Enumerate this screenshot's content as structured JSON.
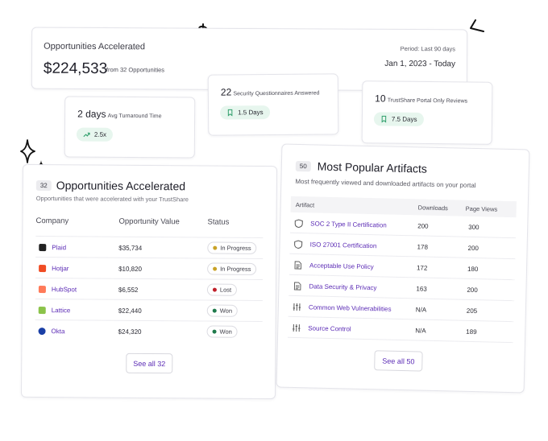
{
  "summary": {
    "title": "Opportunities Accelerated",
    "amount": "$224,533",
    "sub": "from 32 Opportunities",
    "period": "Period: Last 90 days",
    "range": "Jan 1, 2023 - Today"
  },
  "stats": {
    "turnaround": {
      "value": "2 days",
      "label": "Avg Turnaround Time",
      "pill": "2.5x",
      "icon": "trend-up-icon"
    },
    "security": {
      "value": "22",
      "label": "Security Questionnaires Answered",
      "pill": "1.5 Days",
      "icon": "bookmark-icon"
    },
    "reviews": {
      "value": "10",
      "label": "TrustShare Portal Only Reviews",
      "pill": "7.5 Days",
      "icon": "bookmark-icon"
    }
  },
  "opportunities": {
    "count": "32",
    "title": "Opportunities Accelerated",
    "subtitle": "Opportunities that were accelerated with your TrustShare",
    "columns": [
      "Company",
      "Opportunity Value",
      "Status"
    ],
    "rows": [
      {
        "company": "Plaid",
        "value": "$35,734",
        "status": "In Progress",
        "dot": "#c9a227",
        "logo": "#222222"
      },
      {
        "company": "Hotjar",
        "value": "$10,820",
        "status": "In Progress",
        "dot": "#c9a227",
        "logo": "#f04c24"
      },
      {
        "company": "HubSpot",
        "value": "$6,552",
        "status": "Lost",
        "dot": "#c0202a",
        "logo": "#ff7a59"
      },
      {
        "company": "Lattice",
        "value": "$22,440",
        "status": "Won",
        "dot": "#1f7a4c",
        "logo": "#8bc34a"
      },
      {
        "company": "Okta",
        "value": "$24,320",
        "status": "Won",
        "dot": "#1f7a4c",
        "logo": "#1a3fa6"
      }
    ],
    "see_all": "See all 32"
  },
  "artifacts": {
    "count": "50",
    "title": "Most Popular Artifacts",
    "subtitle": "Most frequently viewed and downloaded artifacts on your portal",
    "columns": [
      "Artifact",
      "Downloads",
      "Page Views"
    ],
    "rows": [
      {
        "name": "SOC 2 Type II Certification",
        "downloads": "200",
        "views": "300",
        "icon": "shield-icon"
      },
      {
        "name": "ISO 27001 Certification",
        "downloads": "178",
        "views": "200",
        "icon": "shield-icon"
      },
      {
        "name": "Acceptable Use Policy",
        "downloads": "172",
        "views": "180",
        "icon": "document-icon"
      },
      {
        "name": "Data Security & Privacy",
        "downloads": "163",
        "views": "200",
        "icon": "document-icon"
      },
      {
        "name": "Common Web Vulnerabilities",
        "downloads": "N/A",
        "views": "205",
        "icon": "sliders-icon"
      },
      {
        "name": "Source Control",
        "downloads": "N/A",
        "views": "189",
        "icon": "sliders-icon"
      }
    ],
    "see_all": "See all 50"
  }
}
